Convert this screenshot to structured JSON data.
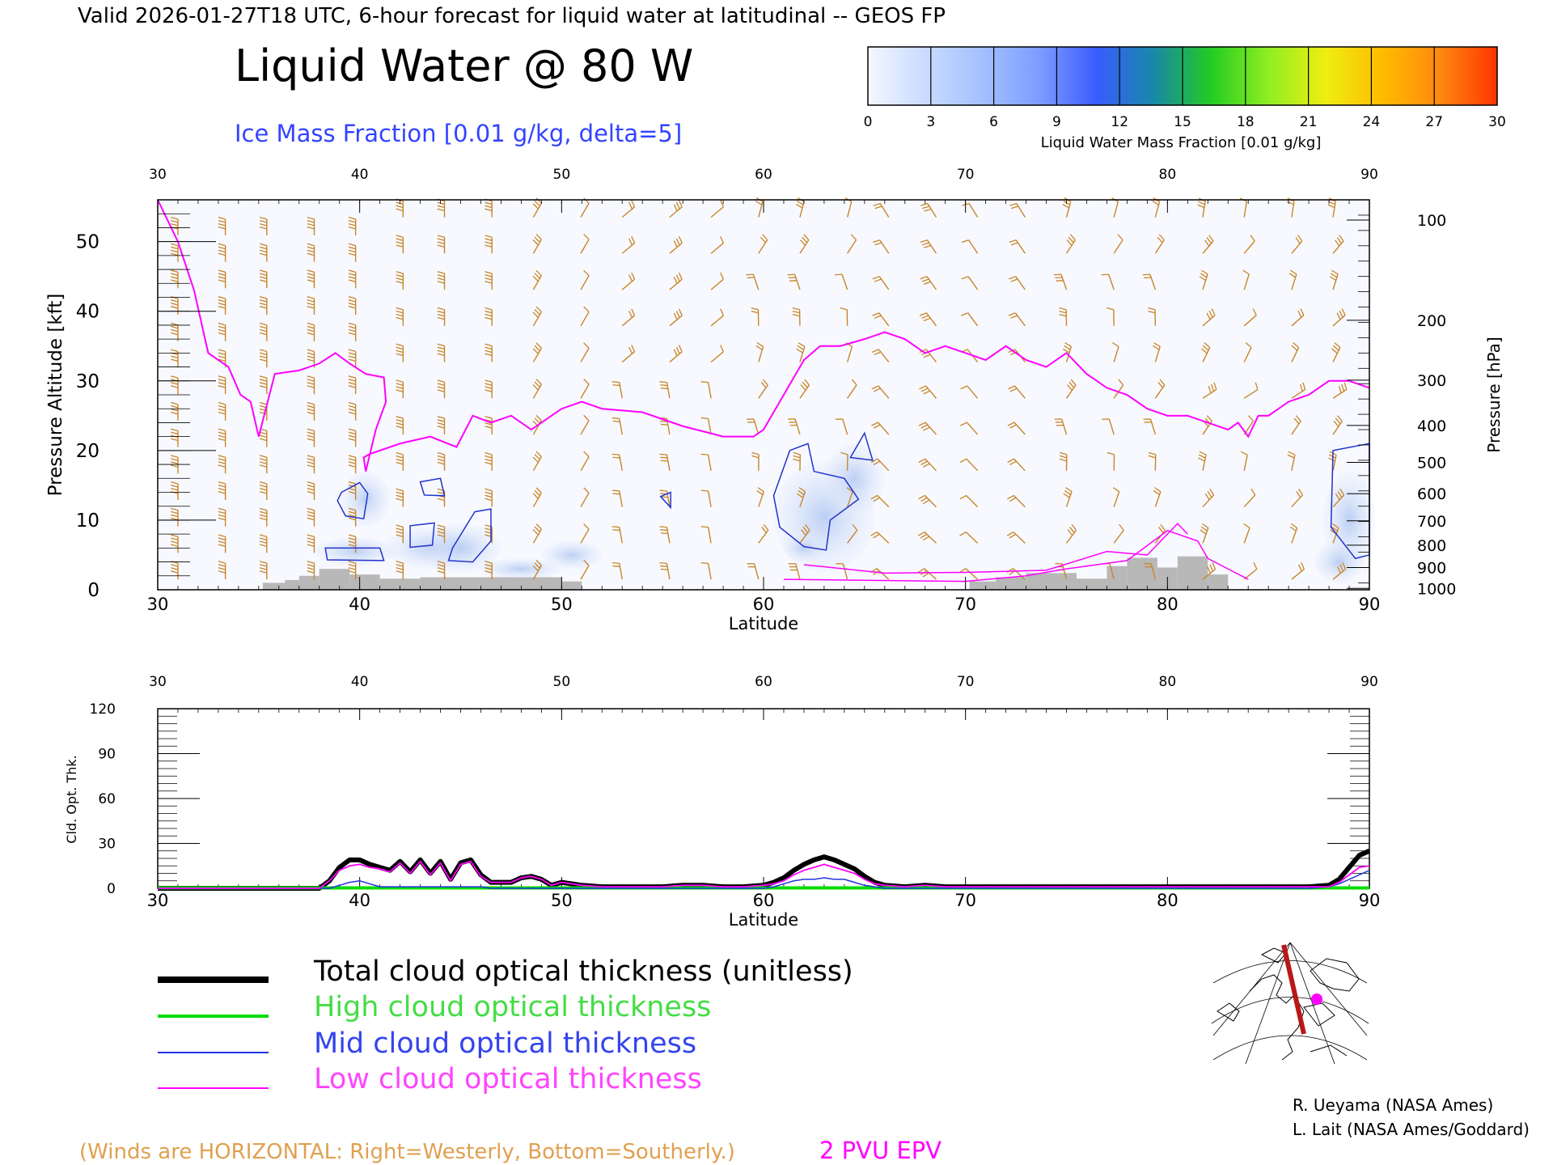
{
  "header": {
    "valid_line": "Valid 2026-01-27T18 UTC, 6-hour forecast for liquid water at latitudinal -- GEOS FP",
    "title": "Liquid Water @ 80 W",
    "subtitle": "Ice Mass Fraction [0.01 g/kg, delta=5]"
  },
  "colorbar": {
    "label": "Liquid Water Mass Fraction [0.01 g/kg]",
    "ticks": [
      "0",
      "3",
      "6",
      "9",
      "12",
      "15",
      "18",
      "21",
      "24",
      "27",
      "30"
    ],
    "colors": [
      "#f4f7ff",
      "#c9dbff",
      "#a3c1ff",
      "#7d9cff",
      "#3a5cff",
      "#1888a8",
      "#22cc22",
      "#90ee22",
      "#eeee11",
      "#ffbb00",
      "#ff8811",
      "#ff3300"
    ]
  },
  "colors": {
    "wind_barb": "#c8852a",
    "epv_line": "#ff00ff",
    "ice_contour": "#2233cc",
    "terrain": "#b8b8b8",
    "total_line": "#000000",
    "high_line": "#00dd00",
    "mid_line": "#2233dd",
    "low_line": "#ff00ff"
  },
  "chart_data": [
    {
      "type": "line",
      "panel": "cross-section",
      "xlabel": "Latitude",
      "ylabel": "Pressure Altitude [kft]",
      "ylabel_right": "Pressure [hPa]",
      "xlim": [
        30,
        90
      ],
      "ylim": [
        0,
        56
      ],
      "x_ticks": [
        "30",
        "40",
        "50",
        "60",
        "70",
        "80",
        "90"
      ],
      "y_ticks": [
        "0",
        "10",
        "20",
        "30",
        "40",
        "50"
      ],
      "pressure_ticks": [
        {
          "label": "100",
          "kft": 53.1
        },
        {
          "label": "200",
          "kft": 38.7
        },
        {
          "label": "300",
          "kft": 30.1
        },
        {
          "label": "400",
          "kft": 23.6
        },
        {
          "label": "500",
          "kft": 18.3
        },
        {
          "label": "600",
          "kft": 13.8
        },
        {
          "label": "700",
          "kft": 9.9
        },
        {
          "label": "800",
          "kft": 6.4
        },
        {
          "label": "900",
          "kft": 3.2
        },
        {
          "label": "1000",
          "kft": 0.2
        }
      ],
      "series": [
        {
          "name": "2 PVU EPV",
          "x": [
            30,
            31,
            31.8,
            32.5,
            33.5,
            34.1,
            34.6,
            35,
            35.8,
            37,
            38,
            38.8,
            39.5,
            40.3,
            41.2,
            41.3,
            40.8,
            40.3,
            40.2,
            40.5,
            42,
            43.5,
            44.8,
            45.6,
            46.5,
            47.5,
            48.5,
            50,
            51,
            52,
            54,
            56,
            58,
            59.5,
            60,
            61,
            62,
            62.8,
            63.8,
            65,
            66,
            67,
            68,
            69,
            70,
            71,
            72,
            73,
            74,
            75,
            76,
            77,
            78,
            79,
            80,
            81,
            82,
            83,
            83.5,
            84,
            84.5,
            85,
            86,
            87,
            88,
            89,
            90
          ],
          "y": [
            56,
            50,
            43,
            34,
            32,
            28,
            27,
            22,
            31,
            31.5,
            32.5,
            34,
            32.5,
            31,
            30.5,
            27,
            23,
            17,
            19,
            19.5,
            21,
            22,
            20.5,
            25,
            24,
            25,
            23,
            26,
            27,
            26,
            25.5,
            23.5,
            22,
            22,
            23,
            28,
            33,
            35,
            35,
            36,
            37,
            36,
            34,
            35,
            34,
            33,
            35,
            33,
            32,
            34,
            31,
            29,
            28,
            26,
            25,
            25,
            24,
            23,
            24,
            22,
            25,
            25,
            27,
            28,
            30,
            30,
            29
          ]
        }
      ],
      "fields": [
        "wind barbs",
        "liquid water mass fraction",
        "ice mass fraction contours",
        "terrain"
      ]
    },
    {
      "type": "line",
      "panel": "optical-thickness",
      "xlabel": "Latitude",
      "ylabel": "Cld. Opt. Thk.",
      "xlim": [
        30,
        90
      ],
      "ylim": [
        0,
        120
      ],
      "x_ticks": [
        "30",
        "40",
        "50",
        "60",
        "70",
        "80",
        "90"
      ],
      "y_ticks": [
        "0",
        "30",
        "60",
        "90",
        "120"
      ],
      "x": [
        30,
        38,
        38.5,
        39,
        39.5,
        40,
        40.5,
        41,
        41.5,
        42,
        42.5,
        43,
        43.5,
        44,
        44.5,
        45,
        45.5,
        46,
        46.5,
        47,
        47.5,
        48,
        48.5,
        49,
        49.5,
        50,
        51,
        52,
        53,
        54,
        55,
        56,
        57,
        58,
        59,
        60,
        60.5,
        61,
        61.5,
        62,
        62.5,
        63,
        63.5,
        64,
        64.5,
        65,
        65.5,
        66,
        67,
        68,
        69,
        70,
        75,
        80,
        85,
        86,
        87,
        88,
        88.5,
        89,
        89.5,
        90
      ],
      "series": [
        {
          "name": "Total cloud optical thickness (unitless)",
          "values": [
            0,
            0,
            5,
            14,
            19,
            19,
            16,
            14,
            12,
            18,
            11,
            19,
            10,
            18,
            6,
            17,
            19,
            9,
            4,
            4,
            4,
            7,
            8,
            6,
            2,
            4,
            2,
            1,
            1,
            1,
            1,
            2,
            2,
            1,
            1,
            2,
            4,
            7,
            12,
            16,
            19,
            21,
            19,
            16,
            13,
            8,
            4,
            2,
            1,
            2,
            1,
            1,
            1,
            1,
            1,
            1,
            1,
            2,
            6,
            14,
            22,
            25
          ]
        },
        {
          "name": "High cloud optical thickness",
          "values": [
            0,
            0,
            0,
            0,
            0,
            0,
            0,
            0,
            0,
            0,
            0,
            0,
            0,
            0,
            0,
            0,
            0,
            0,
            0,
            0,
            0,
            0,
            0,
            0,
            0,
            0,
            0,
            0,
            0,
            0,
            0,
            0,
            0,
            0,
            0,
            0,
            0,
            0,
            0,
            0,
            0,
            0,
            0,
            0,
            0,
            0,
            0,
            0,
            0,
            0,
            0,
            0,
            0,
            0,
            0,
            0,
            0,
            0,
            0,
            0,
            0,
            0
          ]
        },
        {
          "name": "Mid cloud optical thickness",
          "values": [
            0,
            0,
            0,
            2,
            4,
            5,
            3,
            1,
            1,
            1,
            1,
            1,
            1,
            1,
            1,
            1,
            1,
            1,
            0,
            0,
            0,
            0,
            0,
            0,
            0,
            0,
            0,
            0,
            0,
            0,
            0,
            0,
            0,
            0,
            0,
            0,
            1,
            3,
            5,
            6,
            6,
            7,
            6,
            6,
            4,
            2,
            1,
            0,
            0,
            0,
            0,
            0,
            0,
            0,
            0,
            0,
            0,
            1,
            3,
            6,
            9,
            12
          ]
        },
        {
          "name": "Low cloud optical thickness",
          "values": [
            0,
            0,
            5,
            12,
            15,
            16,
            14,
            13,
            11,
            17,
            10,
            18,
            9,
            17,
            5,
            16,
            18,
            8,
            4,
            4,
            4,
            7,
            8,
            6,
            2,
            4,
            2,
            1,
            1,
            1,
            1,
            2,
            2,
            1,
            1,
            2,
            3,
            5,
            9,
            12,
            14,
            16,
            14,
            12,
            10,
            6,
            3,
            2,
            1,
            2,
            1,
            1,
            1,
            1,
            1,
            1,
            1,
            1,
            4,
            9,
            14,
            15
          ]
        }
      ]
    }
  ],
  "legend": {
    "total": "Total cloud optical thickness (unitless)",
    "high": "High cloud optical thickness",
    "mid": "Mid cloud optical thickness",
    "low": "Low cloud optical thickness"
  },
  "footer": {
    "winds_note": "(Winds are HORIZONTAL: Right=Westerly, Bottom=Southerly.)",
    "epv_note": "2 PVU EPV",
    "credit1": "R. Ueyama (NASA Ames)",
    "credit2": "L. Lait (NASA Ames/Goddard)"
  }
}
